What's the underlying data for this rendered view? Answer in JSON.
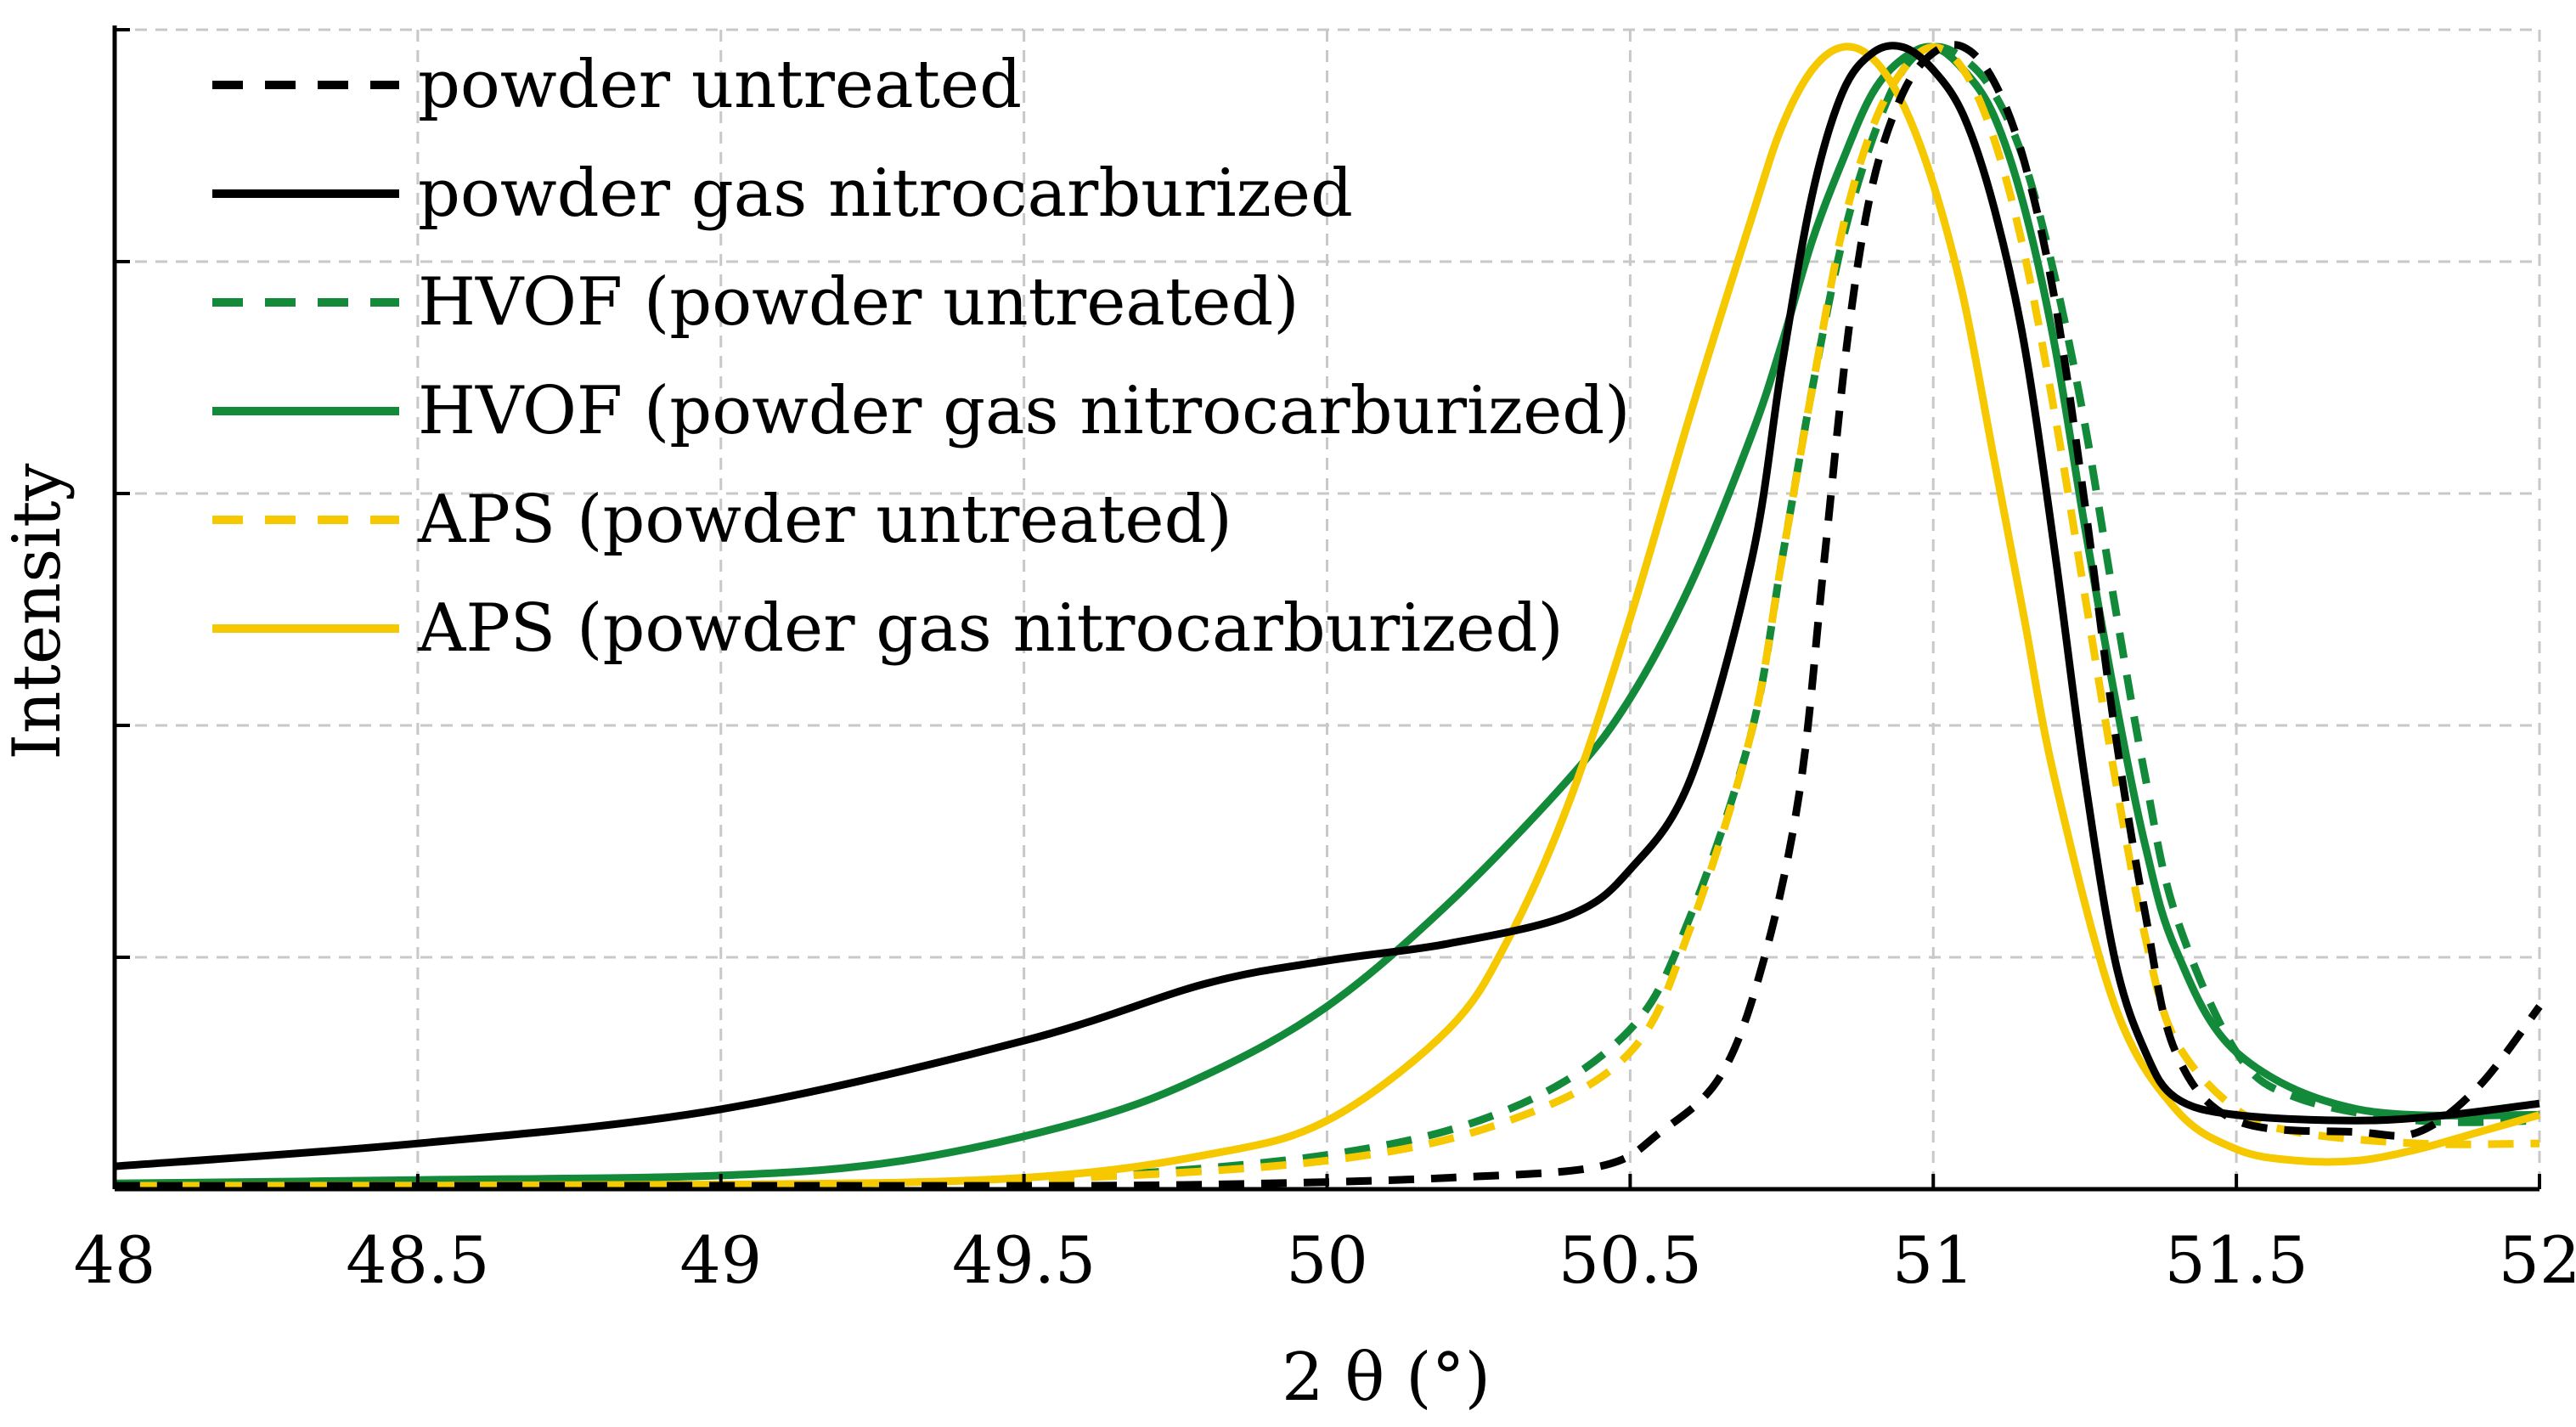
{
  "chart_data": {
    "type": "line",
    "title": "",
    "xlabel": "2 θ (°)",
    "ylabel": "Intensity",
    "xlim": [
      48,
      52
    ],
    "ylim": [
      0,
      1
    ],
    "grid": true,
    "legend_position": "top-left",
    "x_ticks": [
      "48",
      "48.5",
      "49",
      "49.5",
      "50",
      "50.5",
      "51",
      "51.5",
      "52"
    ],
    "y_ticks_count": 5,
    "series": [
      {
        "name": "powder untreated",
        "color": "#000000",
        "dash": "dashed",
        "x": [
          48.0,
          49.0,
          49.6,
          49.9,
          50.2,
          50.45,
          50.55,
          50.65,
          50.72,
          50.78,
          50.82,
          50.86,
          50.9,
          50.95,
          51.0,
          51.05,
          51.1,
          51.15,
          51.2,
          51.25,
          51.3,
          51.35,
          51.4,
          51.5,
          51.7,
          51.8,
          51.9,
          52.0
        ],
        "y": [
          0.003,
          0.003,
          0.003,
          0.005,
          0.01,
          0.02,
          0.05,
          0.1,
          0.2,
          0.35,
          0.55,
          0.75,
          0.88,
          0.96,
          0.995,
          1.0,
          0.97,
          0.9,
          0.78,
          0.6,
          0.4,
          0.24,
          0.12,
          0.06,
          0.05,
          0.05,
          0.09,
          0.16
        ]
      },
      {
        "name": "powder gas nitrocarburized",
        "color": "#000000",
        "dash": "solid",
        "x": [
          48.0,
          48.5,
          49.0,
          49.5,
          49.8,
          50.0,
          50.2,
          50.4,
          50.5,
          50.6,
          50.7,
          50.75,
          50.8,
          50.85,
          50.9,
          50.95,
          51.0,
          51.05,
          51.1,
          51.15,
          51.2,
          51.25,
          51.3,
          51.35,
          51.4,
          51.5,
          51.7,
          51.85,
          52.0
        ],
        "y": [
          0.02,
          0.04,
          0.07,
          0.13,
          0.18,
          0.2,
          0.215,
          0.24,
          0.28,
          0.36,
          0.55,
          0.72,
          0.87,
          0.96,
          0.995,
          1.0,
          0.98,
          0.94,
          0.86,
          0.74,
          0.56,
          0.36,
          0.2,
          0.12,
          0.08,
          0.065,
          0.06,
          0.065,
          0.075
        ]
      },
      {
        "name": "HVOF (powder untreated)",
        "color": "#138a3a",
        "dash": "dashed",
        "x": [
          48.0,
          49.0,
          49.5,
          50.0,
          50.3,
          50.5,
          50.6,
          50.7,
          50.75,
          50.8,
          50.85,
          50.9,
          50.95,
          51.0,
          51.05,
          51.1,
          51.15,
          51.2,
          51.25,
          51.3,
          51.35,
          51.4,
          51.5,
          51.6,
          51.8,
          52.0
        ],
        "y": [
          0.003,
          0.004,
          0.008,
          0.03,
          0.07,
          0.14,
          0.24,
          0.4,
          0.55,
          0.7,
          0.83,
          0.92,
          0.98,
          1.0,
          0.99,
          0.96,
          0.9,
          0.8,
          0.67,
          0.51,
          0.36,
          0.24,
          0.12,
          0.08,
          0.06,
          0.06
        ]
      },
      {
        "name": "HVOF (powder gas nitrocarburized)",
        "color": "#138a3a",
        "dash": "solid",
        "x": [
          48.0,
          48.5,
          49.0,
          49.3,
          49.6,
          49.8,
          50.0,
          50.2,
          50.4,
          50.5,
          50.6,
          50.7,
          50.75,
          50.8,
          50.85,
          50.9,
          50.95,
          51.0,
          51.05,
          51.1,
          51.15,
          51.2,
          51.25,
          51.3,
          51.35,
          51.4,
          51.5,
          51.7,
          52.0
        ],
        "y": [
          0.005,
          0.008,
          0.012,
          0.025,
          0.06,
          0.1,
          0.16,
          0.25,
          0.36,
          0.43,
          0.53,
          0.66,
          0.74,
          0.83,
          0.9,
          0.96,
          0.99,
          1.0,
          0.98,
          0.94,
          0.86,
          0.74,
          0.58,
          0.43,
          0.3,
          0.21,
          0.12,
          0.07,
          0.065
        ]
      },
      {
        "name": "APS (powder untreated)",
        "color": "#f5c800",
        "dash": "dashed",
        "x": [
          48.0,
          49.0,
          49.5,
          50.0,
          50.3,
          50.5,
          50.6,
          50.7,
          50.75,
          50.8,
          50.85,
          50.9,
          50.95,
          51.0,
          51.05,
          51.1,
          51.15,
          51.2,
          51.25,
          51.3,
          51.35,
          51.4,
          51.5,
          51.6,
          51.8,
          52.0
        ],
        "y": [
          0.003,
          0.004,
          0.008,
          0.025,
          0.06,
          0.12,
          0.23,
          0.4,
          0.55,
          0.7,
          0.84,
          0.93,
          0.98,
          1.0,
          0.98,
          0.92,
          0.82,
          0.68,
          0.52,
          0.36,
          0.22,
          0.13,
          0.07,
          0.05,
          0.04,
          0.04
        ]
      },
      {
        "name": "APS (powder gas nitrocarburized)",
        "color": "#f5c800",
        "dash": "solid",
        "x": [
          48.0,
          49.0,
          49.5,
          49.8,
          50.0,
          50.2,
          50.3,
          50.4,
          50.5,
          50.6,
          50.7,
          50.75,
          50.8,
          50.85,
          50.9,
          50.95,
          51.0,
          51.05,
          51.1,
          51.15,
          51.2,
          51.3,
          51.4,
          51.5,
          51.6,
          51.7,
          51.8,
          51.9,
          52.0
        ],
        "y": [
          0.003,
          0.004,
          0.01,
          0.03,
          0.06,
          0.14,
          0.22,
          0.34,
          0.5,
          0.68,
          0.85,
          0.93,
          0.98,
          1.0,
          0.99,
          0.95,
          0.88,
          0.78,
          0.64,
          0.5,
          0.36,
          0.16,
          0.07,
          0.035,
          0.025,
          0.025,
          0.035,
          0.05,
          0.065
        ]
      }
    ]
  }
}
